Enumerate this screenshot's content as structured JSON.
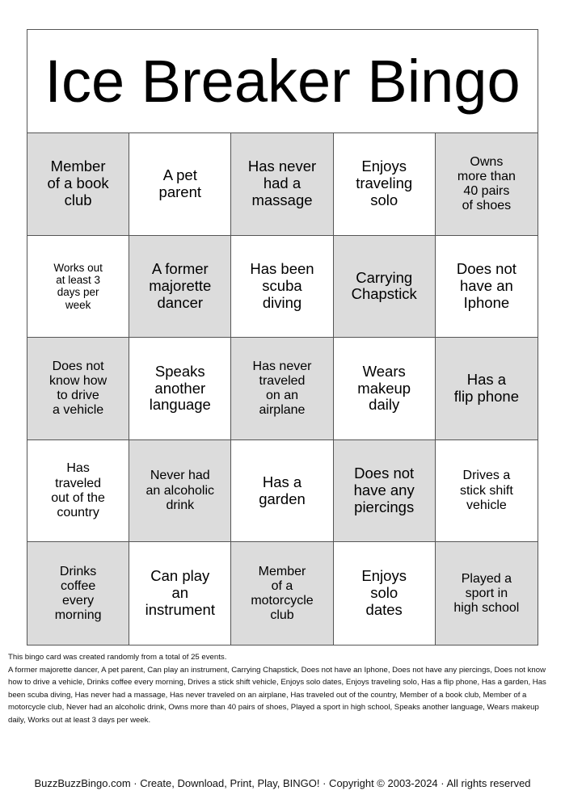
{
  "title": "Ice Breaker Bingo",
  "cells": [
    {
      "text": "Member\nof a book\nclub",
      "size": "l",
      "shaded": true
    },
    {
      "text": "A pet\nparent",
      "size": "l",
      "shaded": false
    },
    {
      "text": "Has never\nhad a\nmassage",
      "size": "l",
      "shaded": true
    },
    {
      "text": "Enjoys\ntraveling\nsolo",
      "size": "l",
      "shaded": false
    },
    {
      "text": "Owns\nmore than\n40 pairs\nof shoes",
      "size": "m",
      "shaded": true
    },
    {
      "text": "Works out\nat least 3\ndays per\nweek",
      "size": "s",
      "shaded": false
    },
    {
      "text": "A former\nmajorette\ndancer",
      "size": "l",
      "shaded": true
    },
    {
      "text": "Has been\nscuba\ndiving",
      "size": "l",
      "shaded": false
    },
    {
      "text": "Carrying\nChapstick",
      "size": "l",
      "shaded": true
    },
    {
      "text": "Does not\nhave an\nIphone",
      "size": "l",
      "shaded": false
    },
    {
      "text": "Does not\nknow how\nto drive\na vehicle",
      "size": "m",
      "shaded": true
    },
    {
      "text": "Speaks\nanother\nlanguage",
      "size": "l",
      "shaded": false
    },
    {
      "text": "Has never\ntraveled\non an\nairplane",
      "size": "m",
      "shaded": true
    },
    {
      "text": "Wears\nmakeup\ndaily",
      "size": "l",
      "shaded": false
    },
    {
      "text": "Has a\nflip phone",
      "size": "l",
      "shaded": true
    },
    {
      "text": "Has\ntraveled\nout of the\ncountry",
      "size": "m",
      "shaded": false
    },
    {
      "text": "Never had\nan alcoholic\ndrink",
      "size": "m",
      "shaded": true
    },
    {
      "text": "Has a\ngarden",
      "size": "l",
      "shaded": false
    },
    {
      "text": "Does not\nhave any\npiercings",
      "size": "l",
      "shaded": true
    },
    {
      "text": "Drives a\nstick shift\nvehicle",
      "size": "m",
      "shaded": false
    },
    {
      "text": "Drinks\ncoffee\nevery\nmorning",
      "size": "m",
      "shaded": true
    },
    {
      "text": "Can play\nan\ninstrument",
      "size": "l",
      "shaded": false
    },
    {
      "text": "Member\nof a\nmotorcycle\nclub",
      "size": "m",
      "shaded": true
    },
    {
      "text": "Enjoys\nsolo\ndates",
      "size": "l",
      "shaded": false
    },
    {
      "text": "Played a\nsport in\nhigh school",
      "size": "m",
      "shaded": true
    }
  ],
  "info": {
    "summary": "This bingo card was created randomly from a total of 25 events.",
    "events": "A former majorette dancer, A pet parent, Can play an instrument, Carrying Chapstick, Does not have an Iphone, Does not have any piercings, Does not know how to drive a vehicle, Drinks coffee every morning, Drives a stick shift vehicle, Enjoys solo dates, Enjoys traveling solo, Has a flip phone, Has a garden, Has been scuba diving, Has never had a massage, Has never traveled on an airplane, Has traveled out of the country, Member of a book club, Member of a motorcycle club, Never had an alcoholic drink, Owns more than 40 pairs of shoes, Played a sport in high school, Speaks another language, Wears makeup daily, Works out at least 3 days per week."
  },
  "footer": "BuzzBuzzBingo.com · Create, Download, Print, Play, BINGO! · Copyright © 2003-2024 · All rights reserved",
  "colors": {
    "shaded": "#dcdcdc",
    "border": "#555555"
  }
}
